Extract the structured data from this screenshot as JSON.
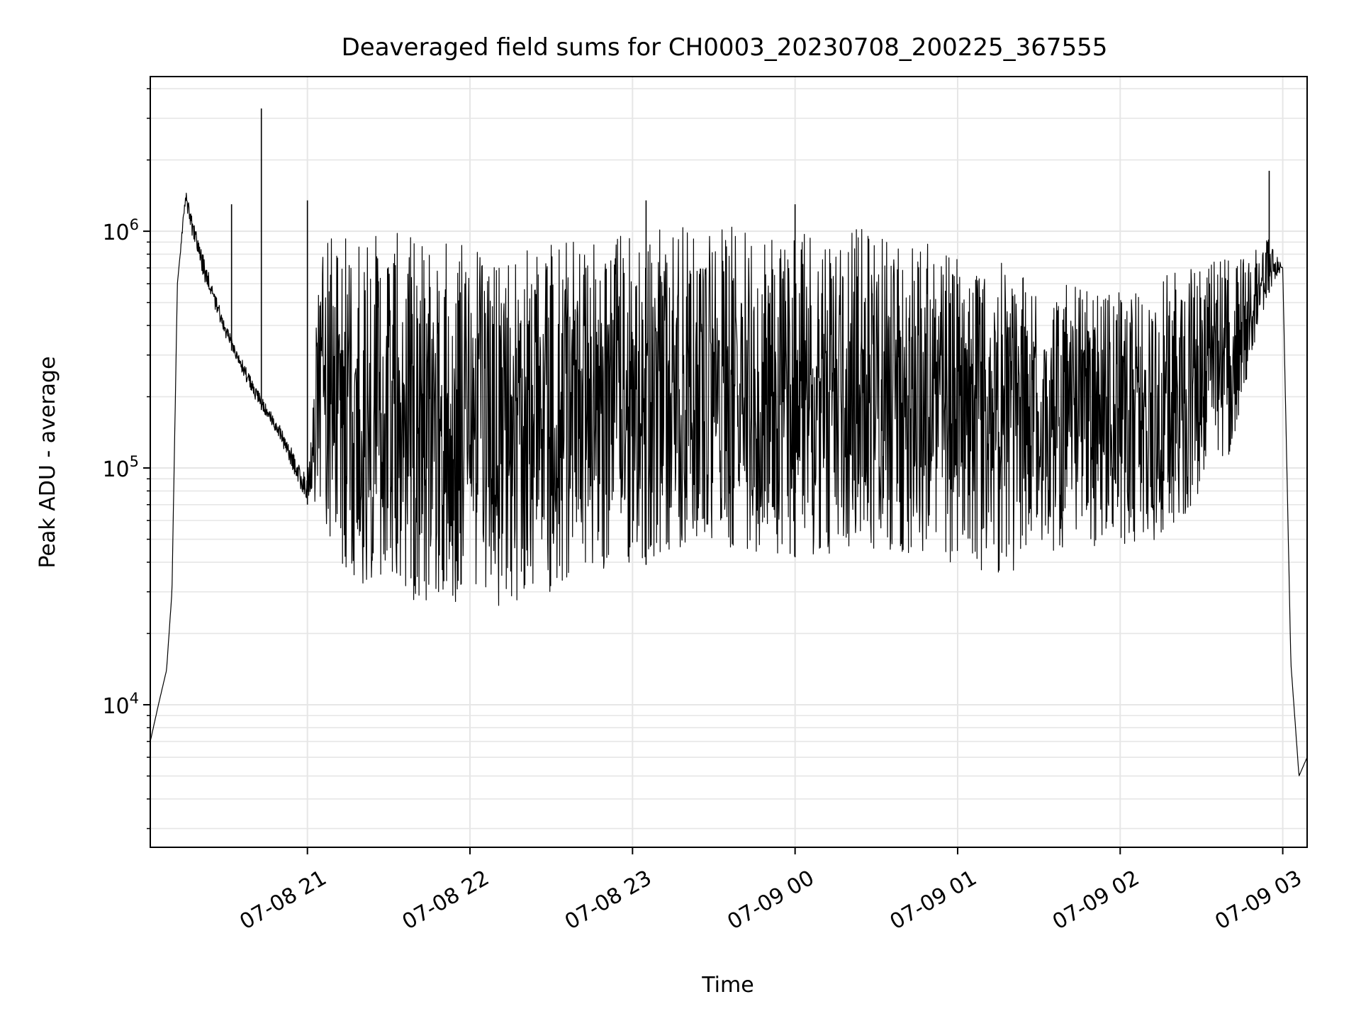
{
  "chart_data": {
    "type": "line",
    "title": "Deaveraged field sums for CH0003_20230708_200225_367555",
    "xlabel": "Time",
    "ylabel": "Peak ADU - average",
    "yscale": "log",
    "ylim": [
      2500,
      4500000
    ],
    "xlim": [
      "2023-07-08 20:02",
      "2023-07-09 03:09"
    ],
    "grid": true,
    "x_ticks": [
      {
        "value": "2023-07-08 21:00",
        "label": "07-08 21"
      },
      {
        "value": "2023-07-08 22:00",
        "label": "07-08 22"
      },
      {
        "value": "2023-07-08 23:00",
        "label": "07-08 23"
      },
      {
        "value": "2023-07-09 00:00",
        "label": "07-09 00"
      },
      {
        "value": "2023-07-09 01:00",
        "label": "07-09 01"
      },
      {
        "value": "2023-07-09 02:00",
        "label": "07-09 02"
      },
      {
        "value": "2023-07-09 03:00",
        "label": "07-09 03"
      }
    ],
    "y_ticks": [
      {
        "value": 10000,
        "base": "10",
        "exp": "4"
      },
      {
        "value": 100000,
        "base": "10",
        "exp": "5"
      },
      {
        "value": 1000000,
        "base": "10",
        "exp": "6"
      }
    ],
    "series_color": "#000000",
    "envelope": {
      "time": [
        "2023-07-08 20:02",
        "2023-07-08 20:05",
        "2023-07-08 20:08",
        "2023-07-08 20:10",
        "2023-07-08 20:12",
        "2023-07-08 20:15",
        "2023-07-08 20:20",
        "2023-07-08 20:25",
        "2023-07-08 20:30",
        "2023-07-08 20:40",
        "2023-07-08 20:50",
        "2023-07-08 21:00",
        "2023-07-08 21:05",
        "2023-07-08 21:10",
        "2023-07-08 21:20",
        "2023-07-08 21:30",
        "2023-07-08 21:40",
        "2023-07-08 21:50",
        "2023-07-08 22:00",
        "2023-07-08 22:10",
        "2023-07-08 22:20",
        "2023-07-08 22:30",
        "2023-07-08 22:40",
        "2023-07-08 22:50",
        "2023-07-08 23:00",
        "2023-07-08 23:10",
        "2023-07-08 23:20",
        "2023-07-08 23:30",
        "2023-07-08 23:40",
        "2023-07-08 23:50",
        "2023-07-09 00:00",
        "2023-07-09 00:10",
        "2023-07-09 00:20",
        "2023-07-09 00:30",
        "2023-07-09 00:40",
        "2023-07-09 00:50",
        "2023-07-09 01:00",
        "2023-07-09 01:10",
        "2023-07-09 01:20",
        "2023-07-09 01:30",
        "2023-07-09 01:40",
        "2023-07-09 01:50",
        "2023-07-09 02:00",
        "2023-07-09 02:10",
        "2023-07-09 02:20",
        "2023-07-09 02:30",
        "2023-07-09 02:40",
        "2023-07-09 02:45",
        "2023-07-09 02:50",
        "2023-07-09 02:55",
        "2023-07-09 03:00",
        "2023-07-09 03:03",
        "2023-07-09 03:06",
        "2023-07-09 03:09"
      ],
      "low": [
        7000,
        10000,
        14000,
        30000,
        600000,
        1300000,
        700000,
        500000,
        350000,
        200000,
        130000,
        70000,
        55000,
        40000,
        30000,
        29000,
        27000,
        26000,
        25000,
        25000,
        27000,
        30000,
        33000,
        35000,
        38000,
        40000,
        42000,
        45000,
        45000,
        44000,
        42000,
        42000,
        42000,
        43000,
        42000,
        40000,
        38000,
        35000,
        36000,
        42000,
        45000,
        46000,
        44000,
        47000,
        55000,
        75000,
        110000,
        190000,
        350000,
        550000,
        700000,
        15000,
        5000,
        6000
      ],
      "high": [
        7000,
        10000,
        14000,
        30000,
        600000,
        1500000,
        900000,
        600000,
        400000,
        230000,
        150000,
        90000,
        1000000,
        1000000,
        1000000,
        1000000,
        950000,
        950000,
        950000,
        900000,
        900000,
        950000,
        950000,
        1000000,
        1050000,
        1100000,
        1100000,
        1050000,
        1050000,
        1100000,
        1100000,
        1100000,
        1050000,
        1000000,
        950000,
        900000,
        850000,
        800000,
        700000,
        650000,
        600000,
        550000,
        550000,
        600000,
        700000,
        700000,
        800000,
        850000,
        950000,
        950000,
        700000,
        15000,
        5000,
        6000
      ]
    },
    "spikes": [
      {
        "time": "2023-07-08 20:43",
        "value": 3300000
      },
      {
        "time": "2023-07-08 21:00",
        "value": 1350000
      },
      {
        "time": "2023-07-08 20:32",
        "value": 1300000
      },
      {
        "time": "2023-07-09 02:55",
        "value": 1800000
      },
      {
        "time": "2023-07-09 00:00",
        "value": 1300000
      },
      {
        "time": "2023-07-08 23:05",
        "value": 1350000
      }
    ]
  }
}
